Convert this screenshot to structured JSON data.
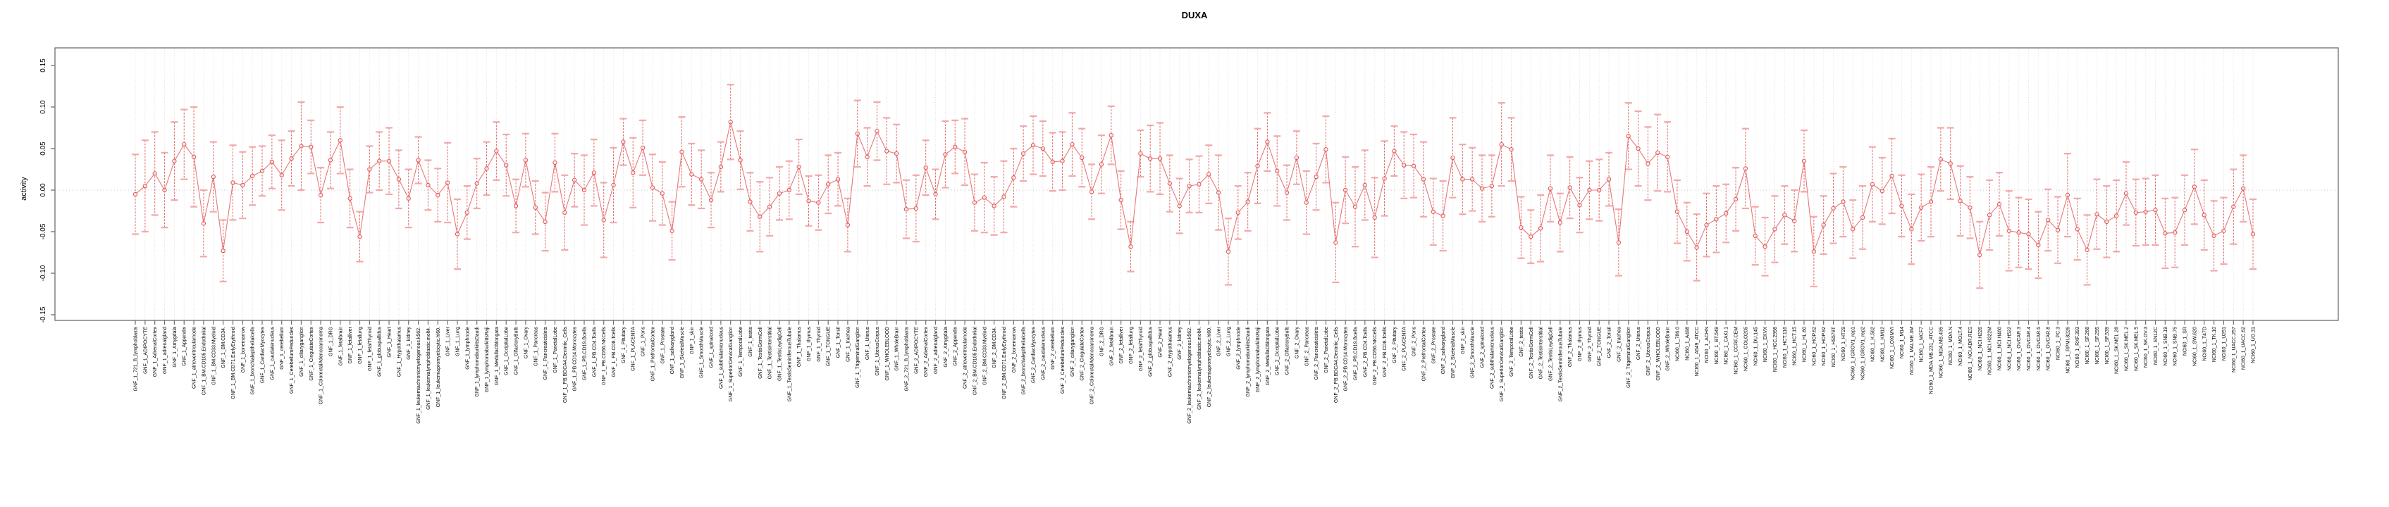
{
  "chart_data": {
    "type": "scatter",
    "title": "DUXA",
    "ylabel": "activity",
    "xlabel": "",
    "ylim": [
      -0.155,
      0.17
    ],
    "yticks": [
      0.15,
      0.1,
      0.05,
      0.0,
      -0.05,
      -0.1,
      -0.15
    ],
    "ytick_labels": [
      "0.15",
      "0.10",
      "0.05",
      "0.00",
      "-0.05",
      "-0.10",
      "-0.15"
    ],
    "legend": "none",
    "grid": "dotted vertical line per category, dotted horizontal line at zero",
    "marker": "open-circle with dashed error bar stems and solid caps, points joined by line",
    "colors": {
      "point": "#e05858",
      "line": "#e87878",
      "errorbar_stem": "#e46060",
      "errorbar_cap": "#f3a8a8",
      "gridline": "#dedede",
      "zero_line": "#c4c4c4",
      "box": "#6e6e6e",
      "text": "#000000"
    },
    "categories": [
      "GNF_1_721_B_lymphoblasts",
      "GNF_1_ADIPOCYTE",
      "GNF_1_AdrenalCortex",
      "GNF_1_adrenalgland",
      "GNF_1_Amygdala",
      "GNF_1_Appendix",
      "GNF_1_atrioventricularnode",
      "GNF_1_BM.CD105.Endothelial",
      "GNF_1_BM.CD33.Myeloid",
      "GNF_1_BM.CD34.",
      "GNF_1_BM.CD71.EarlyErythroid",
      "GNF_1_bonemarrow",
      "GNF_1_bronchialepithelialcells",
      "GNF_1_CardiacMyocytes",
      "GNF_1_caudatenucleus",
      "GNF_1_cerebellum",
      "GNF_1_CerebellumPeduncles",
      "GNF_1_ciliaryganglion",
      "GNF_1_CingulateCortex",
      "GNF_1_ColorectalAdenocarcinoma",
      "GNF_1_DRG",
      "GNF_1_fetalbrain",
      "GNF_1_fetalliver",
      "GNF_1_fetallung",
      "GNF_1_fetalThyroid",
      "GNF_1_globuspallidus",
      "GNF_1_Heart",
      "GNF_1_Hypothalamus",
      "GNF_1_kidney",
      "GNF_1_leukemiachronicmyelogenous.k562.",
      "GNF_1_leukemialymphoblastic.molt4.",
      "GNF_1_leukemiapromyelocytic.hl60.",
      "GNF_1_Liver",
      "GNF_1_Lung",
      "GNF_1_lymphnode",
      "GNF_1_lymphomaburkittsDaudi",
      "GNF_1_lymphomaburkittsRaji",
      "GNF_1_MedullaOblongata",
      "GNF_1_OccipitalLobe",
      "GNF_1_OlfactoryBulb",
      "GNF_1_Ovary",
      "GNF_1_Pancreas",
      "GNF_1_Pancreaticislets",
      "GNF_1_ParietalLobe",
      "GNF_1_PB.BDCA4.Dentritic_Cells",
      "GNF_1_PB.CD14.Monocytes",
      "GNF_1_PB.CD19.Bcells",
      "GNF_1_PB.CD4.Tcells",
      "GNF_1_PB.CD56.NKCells",
      "GNF_1_PB.CD8.Tcells",
      "GNF_1_Pituitary",
      "GNF_1_PLACENTA",
      "GNF_1_Pons",
      "GNF_1_PrefrontalCortex",
      "GNF_1_Prostate",
      "GNF_1_salivarygland",
      "GNF_1_SkeletalMuscle",
      "GNF_1_skin",
      "GNF_1_SmoothMuscle",
      "GNF_1_spinalcord",
      "GNF_1_subthalamicnucleus",
      "GNF_1_SuperiorCervicalGanglion",
      "GNF_1_TemporalLobe",
      "GNF_1_testis",
      "GNF_1_TestisGermCell",
      "GNF_1_TestisInterstitial",
      "GNF_1_TestisLeydigCell",
      "GNF_1_TestisSeminiferousTubule",
      "GNF_1_Thalamus",
      "GNF_1_thymus",
      "GNF_1_Thyroid",
      "GNF_1_TONGUE",
      "GNF_1_Tonsil",
      "GNF_1_trachea",
      "GNF_1_TrigeminalGanglion",
      "GNF_1_Uterus",
      "GNF_1_UterusCorpus",
      "GNF_1_WHOLEBLOOD",
      "GNF_1_WholeBrain",
      "GNF_2_721_B_lymphoblasts",
      "GNF_2_ADIPOCYTE",
      "GNF_2_AdrenalCortex",
      "GNF_2_adrenalgland",
      "GNF_2_Amygdala",
      "GNF_2_Appendix",
      "GNF_2_atrioventricularnode",
      "GNF_2_BM.CD105.Endothelial",
      "GNF_2_BM.CD33.Myeloid",
      "GNF_2_BM.CD34.",
      "GNF_2_BM.CD71.EarlyErythroid",
      "GNF_2_bonemarrow",
      "GNF_2_bronchialepithelialcells",
      "GNF_2_CardiacMyocytes",
      "GNF_2_caudatenucleus",
      "GNF_2_cerebellum",
      "GNF_2_CerebellumPeduncles",
      "GNF_2_ciliaryganglion",
      "GNF_2_CingulateCortex",
      "GNF_2_ColorectalAdenocarcinoma",
      "GNF_2_DRG",
      "GNF_2_fetalbrain",
      "GNF_2_fetalliver",
      "GNF_2_fetallung",
      "GNF_2_fetalThyroid",
      "GNF_2_globuspallidus",
      "GNF_2_Heart",
      "GNF_2_Hypothalamus",
      "GNF_2_kidney",
      "GNF_2_leukemiachronicmyelogenous.k562.",
      "GNF_2_leukemialymphoblastic.molt4.",
      "GNF_2_leukemiapromyelocytic.hl60.",
      "GNF_2_Liver",
      "GNF_2_Lung",
      "GNF_2_lymphnode",
      "GNF_2_lymphomaburkittsDaudi",
      "GNF_2_lymphomaburkittsRaji",
      "GNF_2_MedullaOblongata",
      "GNF_2_OccipitalLobe",
      "GNF_2_OlfactoryBulb",
      "GNF_2_Ovary",
      "GNF_2_Pancreas",
      "GNF_2_Pancreaticislets",
      "GNF_2_ParietalLobe",
      "GNF_2_PB.BDCA4.Dentritic_Cells",
      "GNF_2_PB.CD14.Monocytes",
      "GNF_2_PB.CD19.Bcells",
      "GNF_2_PB.CD4.Tcells",
      "GNF_2_PB.CD56.NKCells",
      "GNF_2_PB.CD8.Tcells",
      "GNF_2_Pituitary",
      "GNF_2_PLACENTA",
      "GNF_2_Pons",
      "GNF_2_PrefrontalCortex",
      "GNF_2_Prostate",
      "GNF_2_salivarygland",
      "GNF_2_SkeletalMuscle",
      "GNF_2_skin",
      "GNF_2_SmoothMuscle",
      "GNF_2_spinalcord",
      "GNF_2_subthalamicnucleus",
      "GNF_2_SuperiorCervicalGanglion",
      "GNF_2_TemporalLobe",
      "GNF_2_testis",
      "GNF_2_TestisGermCell",
      "GNF_2_TestisInterstitial",
      "GNF_2_TestisLeydigCell",
      "GNF_2_TestisSeminiferousTubule",
      "GNF_2_Thalamus",
      "GNF_2_thymus",
      "GNF_2_Thyroid",
      "GNF_2_TONGUE",
      "GNF_2_Tonsil",
      "GNF_2_trachea",
      "GNF_2_TrigeminalGanglion",
      "GNF_2_Uterus",
      "GNF_2_UterusCorpus",
      "GNF_2_WHOLEBLOOD",
      "GNF_2_WholeBrain",
      "NCI60_1_786.0",
      "NCI60_1_A498",
      "NCI60_1_A549_ATCC",
      "NCI60_1_ACHN",
      "NCI60_1_BT.549",
      "NCI60_1_CAKI.1",
      "NCI60_1_CCRF.CEM",
      "NCI60_1_COLO205",
      "NCI60_1_DU.145",
      "NCI60_1_EKVX",
      "NCI60_1_HCC.2998",
      "NCI60_1_HCT.116",
      "NCI60_1_HCT.15",
      "NCI60_1_HL.60",
      "NCI60_1_HOP.62",
      "NCI60_1_HOP.92",
      "NCI60_1_HS578T",
      "NCI60_1_HT29",
      "NCI60_1_IGROV1_rep1",
      "NCI60_1_IGROV1_rep2",
      "NCI60_1_K.562",
      "NCI60_1_KM12",
      "NCI60_1_LOXIMVI",
      "NCI60_1_M14",
      "NCI60_1_MALME.3M",
      "NCI60_1_MCF7",
      "NCI60_1_MDA.MB.231_ATCC",
      "NCI60_1_MDA.MB.435",
      "NCI60_1_MDA.N",
      "NCI60_1_MOLT.4",
      "NCI60_1_NCI.ADR.RES",
      "NCI60_1_NCI.H226",
      "NCI60_1_NCI.H322M",
      "NCI60_1_NCI.H460",
      "NCI60_1_NCI.H522",
      "NCI60_1_OVCAR.3",
      "NCI60_1_OVCAR.4",
      "NCI60_1_OVCAR.5",
      "NCI60_1_OVCAR.8",
      "NCI60_1_PC.3",
      "NCI60_1_RPMI.8226",
      "NCI60_1_RXF.393",
      "NCI60_1_SF.268",
      "NCI60_1_SF.295",
      "NCI60_1_SF.539",
      "NCI60_1_SK.MEL.28",
      "NCI60_1_SK.MEL.2",
      "NCI60_1_SK.MEL.5",
      "NCI60_1_SK.OV.3",
      "NCI60_1_SN12C",
      "NCI60_1_SNB.19",
      "NCI60_1_SNB.75",
      "NCI60_1_SR",
      "NCI60_1_SW.620",
      "NCI60_1_T47D",
      "NCI60_1_TK.10",
      "NCI60_1_U251",
      "NCI60_1_UACC.257",
      "NCI60_1_UACC.62",
      "NCI60_1_UO.31"
    ],
    "values": [
      -0.005,
      0.005,
      0.02,
      0.0,
      0.035,
      0.055,
      0.04,
      -0.04,
      0.016,
      -0.073,
      0.009,
      0.006,
      0.017,
      0.023,
      0.034,
      0.018,
      0.038,
      0.053,
      0.052,
      -0.006,
      0.036,
      0.06,
      -0.01,
      -0.056,
      0.025,
      0.035,
      0.035,
      0.013,
      -0.01,
      0.036,
      0.006,
      -0.006,
      0.009,
      -0.053,
      -0.027,
      0.008,
      0.026,
      0.047,
      0.03,
      -0.019,
      0.036,
      -0.021,
      -0.038,
      0.033,
      -0.027,
      0.012,
      0.0,
      0.021,
      -0.036,
      0.006,
      0.058,
      0.021,
      0.051,
      0.003,
      -0.004,
      -0.049,
      0.046,
      0.019,
      0.013,
      -0.012,
      0.028,
      0.082,
      0.036,
      -0.014,
      -0.032,
      -0.02,
      -0.004,
      0.0,
      0.028,
      -0.013,
      -0.015,
      0.007,
      0.013,
      -0.042,
      0.068,
      0.04,
      0.071,
      0.047,
      0.044,
      -0.023,
      -0.022,
      0.027,
      -0.005,
      0.043,
      0.052,
      0.046,
      -0.015,
      -0.009,
      -0.019,
      -0.008,
      0.015,
      0.044,
      0.054,
      0.05,
      0.034,
      0.035,
      0.055,
      0.039,
      -0.002,
      0.031,
      0.066,
      -0.012,
      -0.068,
      0.044,
      0.038,
      0.038,
      0.008,
      -0.019,
      0.005,
      0.007,
      0.019,
      -0.003,
      -0.074,
      -0.027,
      -0.014,
      0.029,
      0.058,
      0.023,
      -0.003,
      0.039,
      -0.015,
      0.016,
      0.049,
      -0.063,
      0.0,
      -0.02,
      0.006,
      -0.033,
      0.014,
      0.047,
      0.03,
      0.029,
      0.013,
      -0.026,
      -0.031,
      0.039,
      0.013,
      0.013,
      0.002,
      0.005,
      0.055,
      0.049,
      -0.045,
      -0.056,
      -0.046,
      0.002,
      -0.039,
      0.003,
      -0.018,
      0.0,
      0.0,
      0.013,
      -0.063,
      0.065,
      0.05,
      0.032,
      0.045,
      0.04,
      -0.026,
      -0.05,
      -0.069,
      -0.042,
      -0.035,
      -0.028,
      -0.011,
      0.026,
      -0.055,
      -0.068,
      -0.047,
      -0.03,
      -0.037,
      0.035,
      -0.074,
      -0.042,
      -0.022,
      -0.014,
      -0.047,
      -0.033,
      0.007,
      -0.001,
      0.017,
      -0.019,
      -0.047,
      -0.021,
      -0.014,
      0.037,
      0.032,
      -0.013,
      -0.021,
      -0.078,
      -0.03,
      -0.017,
      -0.049,
      -0.051,
      -0.053,
      -0.066,
      -0.036,
      -0.048,
      -0.006,
      -0.047,
      -0.072,
      -0.029,
      -0.038,
      -0.031,
      -0.004,
      -0.027,
      -0.026,
      -0.024,
      -0.052,
      -0.051,
      -0.024,
      0.004,
      -0.03,
      -0.055,
      -0.049,
      -0.02,
      0.002,
      -0.053
    ],
    "errors": [
      0.048,
      0.055,
      0.05,
      0.045,
      0.047,
      0.042,
      0.06,
      0.04,
      0.042,
      0.037,
      0.045,
      0.04,
      0.035,
      0.03,
      0.032,
      0.042,
      0.033,
      0.053,
      0.032,
      0.033,
      0.034,
      0.04,
      0.035,
      0.03,
      0.028,
      0.035,
      0.04,
      0.035,
      0.035,
      0.028,
      0.03,
      0.032,
      0.048,
      0.042,
      0.032,
      0.03,
      0.032,
      0.035,
      0.037,
      0.032,
      0.032,
      0.032,
      0.035,
      0.035,
      0.045,
      0.032,
      0.042,
      0.04,
      0.045,
      0.045,
      0.028,
      0.042,
      0.033,
      0.04,
      0.038,
      0.035,
      0.042,
      0.037,
      0.035,
      0.033,
      0.03,
      0.045,
      0.035,
      0.035,
      0.042,
      0.035,
      0.032,
      0.035,
      0.033,
      0.03,
      0.033,
      0.035,
      0.032,
      0.032,
      0.04,
      0.035,
      0.035,
      0.04,
      0.035,
      0.035,
      0.04,
      0.033,
      0.03,
      0.04,
      0.032,
      0.04,
      0.034,
      0.042,
      0.035,
      0.043,
      0.035,
      0.033,
      0.035,
      0.033,
      0.035,
      0.035,
      0.038,
      0.035,
      0.033,
      0.035,
      0.035,
      0.035,
      0.03,
      0.028,
      0.04,
      0.043,
      0.034,
      0.033,
      0.032,
      0.034,
      0.035,
      0.045,
      0.04,
      0.032,
      0.035,
      0.045,
      0.035,
      0.042,
      0.033,
      0.032,
      0.038,
      0.04,
      0.04,
      0.048,
      0.04,
      0.048,
      0.042,
      0.048,
      0.045,
      0.03,
      0.04,
      0.038,
      0.045,
      0.04,
      0.042,
      0.048,
      0.042,
      0.038,
      0.04,
      0.037,
      0.05,
      0.038,
      0.037,
      0.032,
      0.04,
      0.04,
      0.035,
      0.037,
      0.033,
      0.035,
      0.037,
      0.032,
      0.04,
      0.04,
      0.045,
      0.044,
      0.046,
      0.042,
      0.038,
      0.035,
      0.04,
      0.038,
      0.04,
      0.035,
      0.038,
      0.048,
      0.035,
      0.035,
      0.04,
      0.035,
      0.037,
      0.037,
      0.042,
      0.035,
      0.042,
      0.042,
      0.035,
      0.038,
      0.045,
      0.04,
      0.045,
      0.037,
      0.042,
      0.04,
      0.042,
      0.038,
      0.043,
      0.042,
      0.037,
      0.04,
      0.042,
      0.038,
      0.048,
      0.042,
      0.042,
      0.04,
      0.037,
      0.04,
      0.05,
      0.037,
      0.042,
      0.042,
      0.043,
      0.043,
      0.038,
      0.04,
      0.04,
      0.042,
      0.042,
      0.042,
      0.042,
      0.045,
      0.042,
      0.042,
      0.04,
      0.045,
      0.04,
      0.042
    ]
  }
}
